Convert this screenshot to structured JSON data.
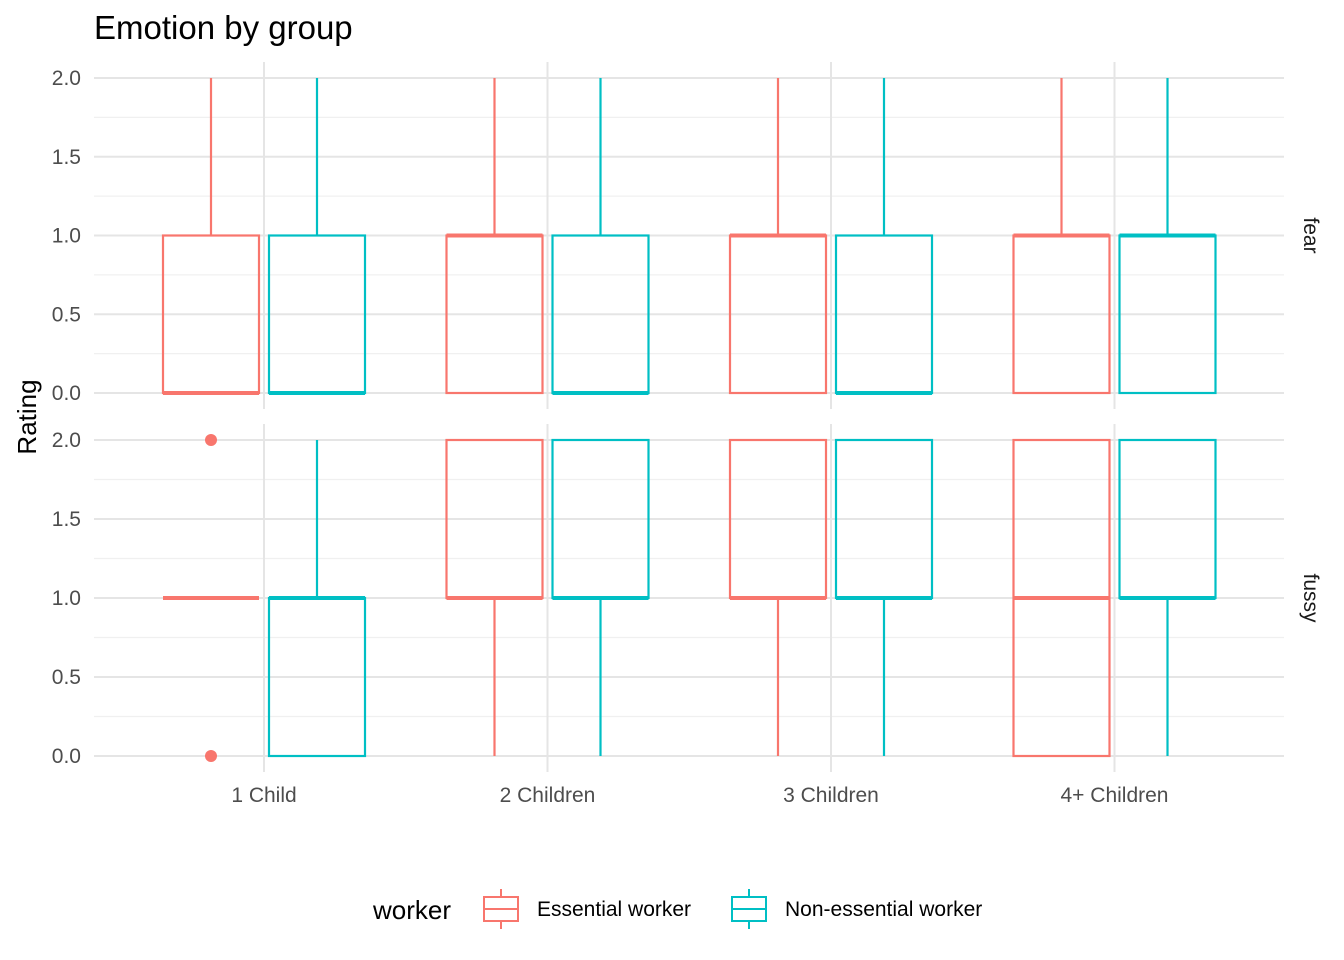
{
  "colors": {
    "essential": "#F8766D",
    "non_essential": "#00BFC4",
    "grid_major": "#e5e5e5",
    "grid_minor": "#f0f0f0"
  },
  "chart_data": {
    "type": "boxplot",
    "title": "Emotion by group",
    "xlabel": "",
    "ylabel": "Rating",
    "categories": [
      "1 Child",
      "2 Children",
      "3 Children",
      "4+ Children"
    ],
    "ylim": [
      0,
      2
    ],
    "yticks": [
      "0.0",
      "0.5",
      "1.0",
      "1.5",
      "2.0"
    ],
    "grid": true,
    "legend": {
      "title": "worker",
      "position": "bottom",
      "entries": [
        "Essential worker",
        "Non-essential worker"
      ]
    },
    "facets": [
      {
        "label": "fear",
        "series": [
          {
            "name": "Essential worker",
            "boxes": [
              {
                "min": 0,
                "q1": 0,
                "median": 0,
                "q3": 1,
                "max": 2,
                "outliers": []
              },
              {
                "min": 0,
                "q1": 0,
                "median": 1,
                "q3": 1,
                "max": 2,
                "outliers": []
              },
              {
                "min": 0,
                "q1": 0,
                "median": 1,
                "q3": 1,
                "max": 2,
                "outliers": []
              },
              {
                "min": 0,
                "q1": 0,
                "median": 1,
                "q3": 1,
                "max": 2,
                "outliers": []
              }
            ]
          },
          {
            "name": "Non-essential worker",
            "boxes": [
              {
                "min": 0,
                "q1": 0,
                "median": 0,
                "q3": 1,
                "max": 2,
                "outliers": []
              },
              {
                "min": 0,
                "q1": 0,
                "median": 0,
                "q3": 1,
                "max": 2,
                "outliers": []
              },
              {
                "min": 0,
                "q1": 0,
                "median": 0,
                "q3": 1,
                "max": 2,
                "outliers": []
              },
              {
                "min": 0,
                "q1": 0,
                "median": 1,
                "q3": 1,
                "max": 2,
                "outliers": []
              }
            ]
          }
        ]
      },
      {
        "label": "fussy",
        "series": [
          {
            "name": "Essential worker",
            "boxes": [
              {
                "min": 1,
                "q1": 1,
                "median": 1,
                "q3": 1,
                "max": 1,
                "outliers": [
                  2,
                  0
                ]
              },
              {
                "min": 0,
                "q1": 1,
                "median": 1,
                "q3": 2,
                "max": 2,
                "outliers": []
              },
              {
                "min": 0,
                "q1": 1,
                "median": 1,
                "q3": 2,
                "max": 2,
                "outliers": []
              },
              {
                "min": 0,
                "q1": 0,
                "median": 1,
                "q3": 2,
                "max": 2,
                "outliers": []
              }
            ]
          },
          {
            "name": "Non-essential worker",
            "boxes": [
              {
                "min": 0,
                "q1": 0,
                "median": 1,
                "q3": 1,
                "max": 2,
                "outliers": []
              },
              {
                "min": 0,
                "q1": 1,
                "median": 1,
                "q3": 2,
                "max": 2,
                "outliers": []
              },
              {
                "min": 0,
                "q1": 1,
                "median": 1,
                "q3": 2,
                "max": 2,
                "outliers": []
              },
              {
                "min": 0,
                "q1": 1,
                "median": 1,
                "q3": 2,
                "max": 2,
                "outliers": []
              }
            ]
          }
        ]
      }
    ]
  }
}
